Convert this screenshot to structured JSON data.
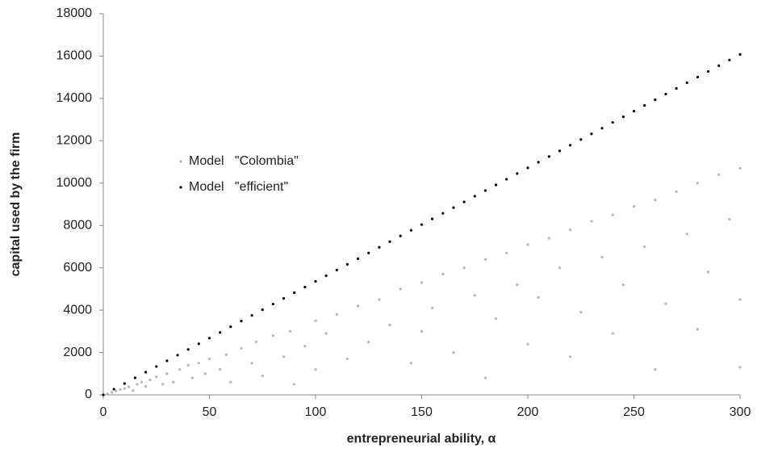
{
  "chart_data": {
    "type": "scatter",
    "xlabel": "entrepreneurial ability, α",
    "ylabel": "capital used by the firm",
    "xlim": [
      0,
      300
    ],
    "xticks": [
      0,
      50,
      100,
      150,
      200,
      250,
      300
    ],
    "ylim": [
      0,
      18000
    ],
    "yticks": [
      0,
      2000,
      4000,
      6000,
      8000,
      10000,
      12000,
      14000,
      16000,
      18000
    ],
    "grid": false,
    "legend": "upper left",
    "series": [
      {
        "name": "Model   \"Colombia\"",
        "color": "#b4b4b4",
        "x": [
          2,
          4,
          6,
          8,
          10,
          12,
          14,
          16,
          18,
          20,
          22,
          25,
          28,
          30,
          33,
          36,
          40,
          42,
          45,
          48,
          50,
          55,
          58,
          60,
          65,
          70,
          72,
          75,
          80,
          85,
          88,
          90,
          95,
          100,
          100,
          105,
          110,
          115,
          120,
          125,
          130,
          135,
          140,
          145,
          150,
          150,
          155,
          160,
          165,
          170,
          175,
          180,
          180,
          185,
          190,
          195,
          200,
          200,
          205,
          210,
          215,
          220,
          220,
          225,
          230,
          235,
          240,
          240,
          245,
          250,
          255,
          260,
          260,
          265,
          270,
          275,
          280,
          280,
          285,
          290,
          295,
          300,
          300,
          300
        ],
        "values": [
          50,
          120,
          180,
          250,
          300,
          380,
          200,
          500,
          600,
          400,
          700,
          850,
          500,
          1000,
          600,
          1200,
          1400,
          800,
          1500,
          1000,
          1700,
          1200,
          1900,
          600,
          2200,
          1500,
          2500,
          900,
          2800,
          1800,
          3000,
          500,
          2300,
          3500,
          1200,
          2900,
          3800,
          1700,
          4200,
          2500,
          4500,
          3300,
          5000,
          1500,
          5300,
          3000,
          4100,
          5700,
          2000,
          6000,
          4700,
          6400,
          800,
          3600,
          6700,
          5200,
          7100,
          2400,
          4600,
          7400,
          6000,
          7800,
          1800,
          3900,
          8200,
          6500,
          8500,
          2900,
          5200,
          8900,
          7000,
          9200,
          1200,
          4300,
          9600,
          7600,
          10000,
          3100,
          5800,
          10400,
          8300,
          10700,
          4500,
          1300
        ]
      },
      {
        "name": "Model   \"efficient\"",
        "color": "#000000",
        "x": [
          0,
          5,
          10,
          15,
          20,
          25,
          30,
          35,
          40,
          45,
          50,
          55,
          60,
          65,
          70,
          75,
          80,
          85,
          90,
          95,
          100,
          105,
          110,
          115,
          120,
          125,
          130,
          135,
          140,
          145,
          150,
          155,
          160,
          165,
          170,
          175,
          180,
          185,
          190,
          195,
          200,
          205,
          210,
          215,
          220,
          225,
          230,
          235,
          240,
          245,
          250,
          255,
          260,
          265,
          270,
          275,
          280,
          285,
          290,
          295,
          300
        ],
        "values": [
          0,
          268,
          536,
          804,
          1072,
          1340,
          1608,
          1876,
          2144,
          2412,
          2680,
          2948,
          3216,
          3484,
          3752,
          4020,
          4288,
          4556,
          4824,
          5092,
          5360,
          5628,
          5896,
          6164,
          6432,
          6700,
          6968,
          7236,
          7504,
          7772,
          8040,
          8308,
          8576,
          8844,
          9112,
          9380,
          9648,
          9916,
          10184,
          10452,
          10720,
          10988,
          11256,
          11524,
          11792,
          12060,
          12328,
          12596,
          12864,
          13132,
          13400,
          13668,
          13936,
          14204,
          14472,
          14740,
          15008,
          15276,
          15544,
          15812,
          16080
        ]
      }
    ]
  }
}
